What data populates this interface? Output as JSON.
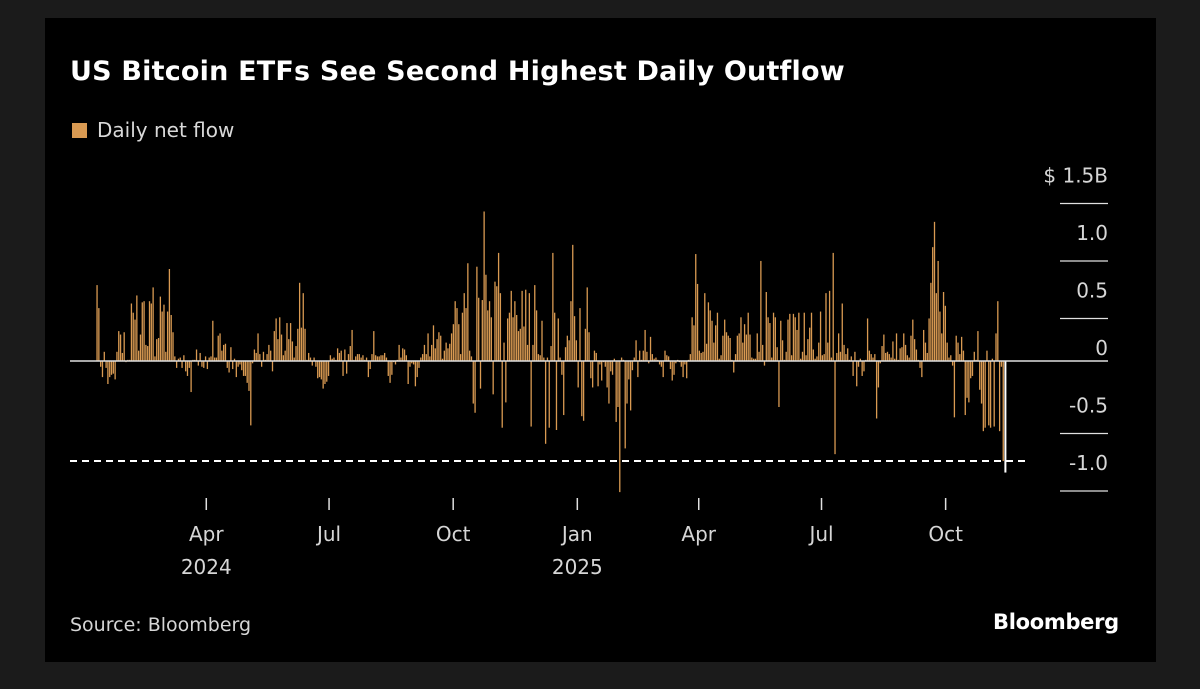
{
  "title": "US Bitcoin ETFs See Second Highest Daily Outflow",
  "source": "Source: Bloomberg",
  "brand": "Bloomberg",
  "colors": {
    "background": "#000000",
    "bar": "#d99a52",
    "text": "#d6d6d6",
    "reference_line": "#ffffff"
  },
  "chart_data": {
    "type": "bar",
    "grid": false,
    "legend_position": "top-left",
    "series": [
      {
        "name": "Daily net flow",
        "color": "#d99a52",
        "x_start": "2024-01-11",
        "values_unit": "USD billions (trading days)",
        "values": [
          0.66,
          0.46,
          -0.05,
          -0.14,
          0.08,
          -0.06,
          -0.2,
          -0.14,
          -0.12,
          -0.11,
          -0.16,
          0.08,
          0.26,
          0.23,
          0.07,
          0.25,
          -0.01,
          0.01,
          0.01,
          0.5,
          0.42,
          0.36,
          0.57,
          0.09,
          0.23,
          0.51,
          0.52,
          0.14,
          0.13,
          0.52,
          0.5,
          0.64,
          0.04,
          0.19,
          0.2,
          0.56,
          0.43,
          0.49,
          0.08,
          0.43,
          0.8,
          0.4,
          0.25,
          0.04,
          -0.06,
          0.02,
          0.03,
          -0.06,
          0.05,
          -0.09,
          -0.13,
          -0.06,
          -0.27,
          0.01,
          0.01,
          0.1,
          -0.04,
          0.07,
          -0.05,
          -0.06,
          0.04,
          -0.07,
          0.03,
          0.04,
          0.35,
          0.03,
          0.03,
          0.22,
          0.24,
          0.09,
          0.14,
          0.15,
          -0.06,
          -0.1,
          0.12,
          -0.07,
          0.02,
          -0.14,
          -0.05,
          -0.03,
          -0.08,
          -0.13,
          -0.13,
          -0.19,
          -0.26,
          -0.56,
          -0.02,
          0.1,
          0.07,
          0.24,
          0.06,
          -0.05,
          0.08,
          0.01,
          0.06,
          0.14,
          0.09,
          -0.09,
          0.26,
          0.37,
          0.19,
          0.38,
          0.23,
          0.05,
          0.09,
          0.33,
          0.19,
          0.33,
          0.17,
          0.03,
          0.13,
          0.28,
          0.68,
          0.29,
          0.59,
          0.28,
          0.01,
          0.07,
          0.03,
          -0.04,
          0.03,
          -0.05,
          -0.15,
          -0.14,
          -0.16,
          -0.24,
          -0.2,
          -0.18,
          -0.13,
          0.05,
          0.02,
          0.03,
          0.01,
          0.11,
          0.07,
          0.09,
          -0.13,
          0.1,
          -0.11,
          0.06,
          0.13,
          0.27,
          0.01,
          0.04,
          0.06,
          0.06,
          0.03,
          0.05,
          0.01,
          0.03,
          -0.14,
          -0.07,
          0.06,
          0.26,
          0.05,
          0.04,
          0.04,
          0.05,
          0.05,
          0.07,
          0.03,
          -0.13,
          -0.19,
          -0.12,
          -0.01,
          -0.03,
          0.01,
          0.14,
          0.03,
          0.11,
          0.1,
          0.05,
          -0.2,
          -0.05,
          -0.02,
          -0.03,
          -0.22,
          -0.14,
          -0.06,
          0.03,
          0.06,
          0.14,
          0.06,
          0.24,
          0.04,
          0.14,
          0.31,
          0.11,
          0.19,
          0.25,
          0.22,
          0.02,
          0.09,
          0.16,
          0.11,
          0.15,
          0.24,
          0.32,
          0.52,
          0.46,
          0.32,
          0.06,
          0.42,
          0.59,
          0.46,
          0.85,
          0.09,
          0.04,
          -0.37,
          -0.45,
          0.82,
          0.55,
          -0.24,
          0.53,
          1.3,
          0.75,
          0.44,
          0.52,
          0.38,
          -0.29,
          0.69,
          0.65,
          0.94,
          0.59,
          -0.58,
          0.16,
          -0.36,
          0.37,
          0.42,
          0.61,
          0.38,
          0.52,
          0.4,
          0.26,
          0.28,
          0.61,
          0.3,
          0.62,
          0.14,
          0.59,
          -0.57,
          0.14,
          0.66,
          0.44,
          0.06,
          0.05,
          0.35,
          0.03,
          -0.72,
          0.03,
          -0.58,
          0.13,
          0.94,
          0.42,
          -0.6,
          0.37,
          0.03,
          -0.12,
          -0.47,
          0.12,
          0.22,
          0.18,
          0.52,
          1.01,
          0.39,
          0.18,
          -0.23,
          0.46,
          -0.48,
          -0.52,
          0.28,
          0.64,
          0.25,
          -0.15,
          -0.23,
          0.09,
          0.07,
          -0.22,
          -0.03,
          -0.17,
          -0.01,
          -0.05,
          -0.23,
          -0.37,
          -0.09,
          -0.12,
          0.02,
          -0.53,
          -0.4,
          -1.14,
          0.03,
          0.01,
          -0.76,
          -0.37,
          -0.16,
          -0.43,
          -0.08,
          0.03,
          0.18,
          -0.14,
          0.09,
          0.01,
          0.09,
          0.27,
          0.08,
          -0.02,
          0.21,
          0.06,
          0.02,
          0.03,
          0.01,
          -0.03,
          -0.05,
          -0.14,
          0.09,
          0.05,
          0.04,
          -0.07,
          -0.17,
          -0.12,
          -0.02,
          0.01,
          -0.01,
          -0.05,
          -0.14,
          -0.03,
          -0.15,
          0.01,
          0.06,
          0.38,
          0.31,
          0.93,
          0.67,
          0.09,
          0.07,
          0.08,
          0.59,
          0.15,
          0.51,
          0.44,
          0.35,
          0.16,
          0.31,
          0.42,
          0.02,
          0.05,
          0.22,
          0.36,
          0.25,
          0.22,
          0.2,
          0.01,
          -0.1,
          0.06,
          0.22,
          0.24,
          0.38,
          0.16,
          0.32,
          0.23,
          0.42,
          0.23,
          0.03,
          0.02,
          0.02,
          0.24,
          0.08,
          0.87,
          0.14,
          -0.04,
          0.6,
          0.38,
          0.33,
          0.03,
          0.42,
          0.38,
          0.12,
          -0.4,
          0.35,
          0.18,
          0.01,
          0.08,
          0.36,
          0.41,
          0.05,
          0.41,
          0.38,
          0.27,
          0.42,
          0.02,
          0.08,
          0.42,
          0.05,
          0.19,
          0.29,
          0.42,
          0.1,
          0.02,
          0.04,
          0.16,
          0.43,
          0.05,
          0.06,
          0.59,
          0.16,
          0.61,
          0.03,
          0.94,
          -0.81,
          0.07,
          0.24,
          0.08,
          0.5,
          0.14,
          0.06,
          0.11,
          0.01,
          0.04,
          -0.13,
          0.08,
          -0.22,
          -0.05,
          0.02,
          -0.13,
          -0.09,
          0.01,
          0.37,
          0.09,
          0.06,
          0.03,
          0.06,
          -0.5,
          -0.23,
          -0.02,
          0.13,
          0.23,
          0.07,
          0.08,
          0.06,
          0.03,
          0.17,
          0.02,
          0.24,
          0.01,
          0.11,
          0.12,
          0.24,
          0.14,
          0.05,
          0.03,
          0.22,
          0.36,
          0.19,
          0.1,
          0.01,
          -0.06,
          -0.14,
          0.27,
          0.16,
          0.07,
          0.37,
          0.68,
          0.99,
          1.21,
          0.59,
          0.87,
          0.43,
          0.24,
          0.6,
          0.48,
          0.16,
          0.03,
          0.05,
          -0.04,
          -0.49,
          0.22,
          0.16,
          0.06,
          0.21,
          0.09,
          -0.47,
          -0.32,
          -0.36,
          -0.15,
          -0.13,
          0.08,
          0.01,
          0.26,
          -0.25,
          -0.37,
          -0.61,
          -0.58,
          0.09,
          -0.56,
          -0.58,
          0.02,
          -0.57,
          0.24,
          0.52,
          -0.61,
          -0.05,
          -0.87,
          -0.97
        ]
      }
    ],
    "x_tick_labels": [
      {
        "label": "Apr",
        "sublabel": "2024",
        "date": "2024-04-01"
      },
      {
        "label": "Jul",
        "sublabel": "",
        "date": "2024-07-01"
      },
      {
        "label": "Oct",
        "sublabel": "",
        "date": "2024-10-01"
      },
      {
        "label": "Jan",
        "sublabel": "2025",
        "date": "2025-01-01"
      },
      {
        "label": "Apr",
        "sublabel": "",
        "date": "2025-04-01"
      },
      {
        "label": "Jul",
        "sublabel": "",
        "date": "2025-07-01"
      },
      {
        "label": "Oct",
        "sublabel": "",
        "date": "2025-10-01"
      }
    ],
    "y_tick_labels": [
      {
        "label": "$ 1.5B",
        "value": 1.5
      },
      {
        "label": "1.0",
        "value": 1.0
      },
      {
        "label": "0.5",
        "value": 0.5
      },
      {
        "label": "0",
        "value": 0
      },
      {
        "label": "-0.5",
        "value": -0.5
      },
      {
        "label": "-1.0",
        "value": -1.0
      }
    ],
    "ylim": [
      -1.15,
      1.5
    ],
    "xlim": [
      "2024-01-11",
      "2025-11-14"
    ],
    "reference_line": {
      "value": -0.87,
      "style": "dashed"
    },
    "xlabel": "",
    "ylabel": ""
  }
}
